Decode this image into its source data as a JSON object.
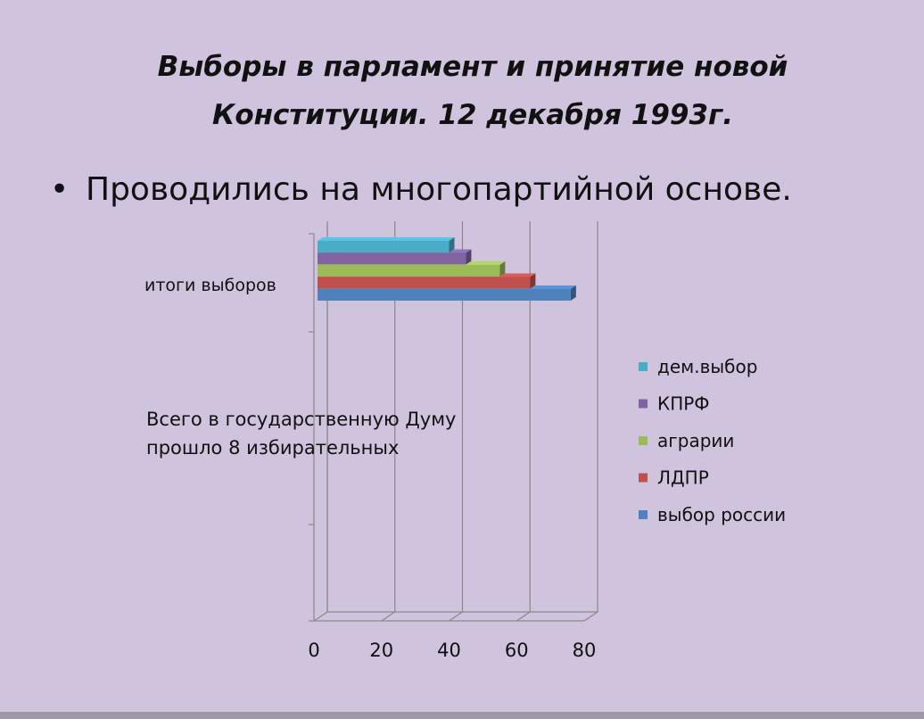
{
  "slide": {
    "title_lines": [
      "Выборы в парламент и принятие новой",
      "Конституции.  12 декабря 1993г."
    ],
    "bullet": "Проводились на многопартийной основе.",
    "note_lines": [
      "Всего в государственную Думу",
      "прошло 8 избирательных"
    ]
  },
  "chart_data": {
    "type": "bar",
    "orientation": "horizontal",
    "categories": [
      "итоги выборов"
    ],
    "series": [
      {
        "name": "дем.выбор",
        "values": [
          40
        ],
        "color": "#4bacc6"
      },
      {
        "name": "КПРФ",
        "values": [
          45
        ],
        "color": "#8064a2"
      },
      {
        "name": "аграрии",
        "values": [
          55
        ],
        "color": "#9bbb59"
      },
      {
        "name": "ЛДПР",
        "values": [
          64
        ],
        "color": "#c0504d"
      },
      {
        "name": "выбор россии",
        "values": [
          76
        ],
        "color": "#4f81bd"
      }
    ],
    "x_ticks": [
      "0",
      "20",
      "40",
      "60",
      "80"
    ],
    "xlim": [
      0,
      80
    ],
    "grid": true,
    "legend": "right"
  }
}
